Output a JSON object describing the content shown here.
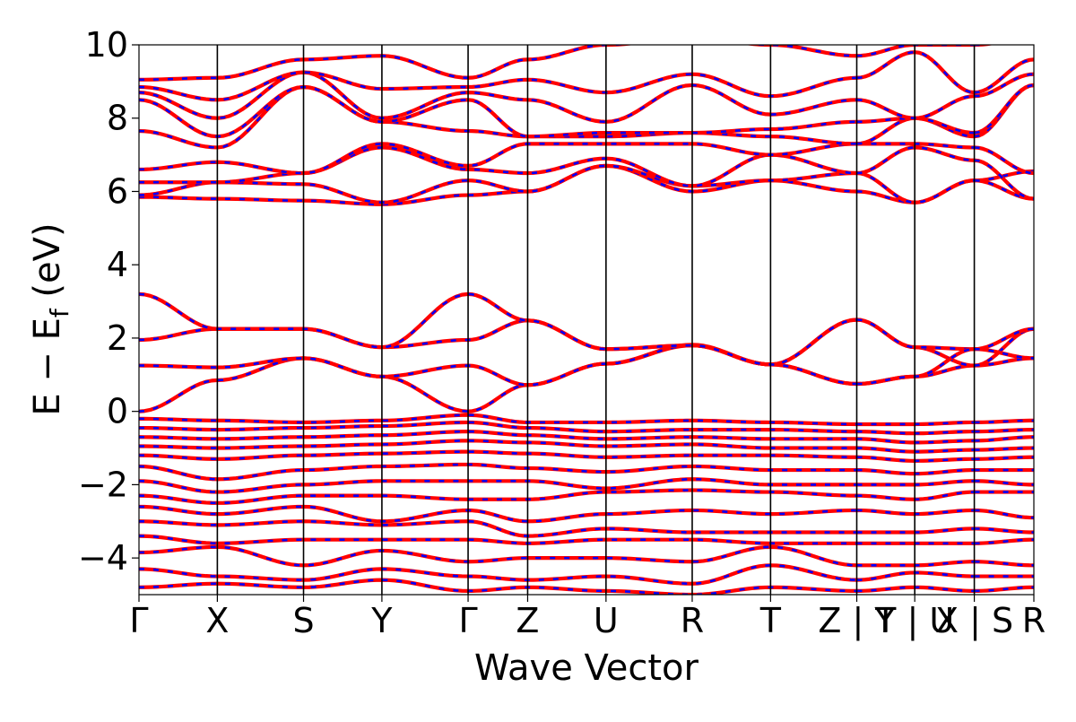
{
  "chart_data": {
    "type": "line",
    "title": "",
    "xlabel": "Wave Vector",
    "ylabel": "E − Ef (eV)",
    "ylabel_parts": {
      "main": "E − E",
      "sub": "f",
      "unit": " (eV)"
    },
    "ylim": [
      -5,
      10
    ],
    "yticks": [
      -4,
      -2,
      0,
      2,
      4,
      6,
      8,
      10
    ],
    "ytick_labels": [
      "−4",
      "−2",
      "0",
      "2",
      "4",
      "6",
      "8",
      "10"
    ],
    "x_segments": [
      {
        "from": "Γ",
        "to": "X",
        "length": 0.5
      },
      {
        "from": "X",
        "to": "S",
        "length": 0.55
      },
      {
        "from": "S",
        "to": "Y",
        "length": 0.5
      },
      {
        "from": "Y",
        "to": "Γ",
        "length": 0.55
      },
      {
        "from": "Γ",
        "to": "Z",
        "length": 0.38
      },
      {
        "from": "Z",
        "to": "U",
        "length": 0.5
      },
      {
        "from": "U",
        "to": "R",
        "length": 0.55
      },
      {
        "from": "R",
        "to": "T",
        "length": 0.5
      },
      {
        "from": "T",
        "to": "Z",
        "length": 0.55
      },
      {
        "from": "Y",
        "to": "T",
        "length": 0.37
      },
      {
        "from": "U",
        "to": "X",
        "length": 0.38
      },
      {
        "from": "S",
        "to": "R",
        "length": 0.38
      }
    ],
    "x_tick_labels": [
      "Γ",
      "X",
      "S",
      "Y",
      "Γ",
      "Z",
      "U",
      "R",
      "T",
      "Z | Y",
      "T | U",
      "X | S",
      "R"
    ],
    "grid": false,
    "legend": "none",
    "series": [
      {
        "color": "#ff0000",
        "dash": "solid"
      },
      {
        "color": "#0000ff",
        "dash": "dashed"
      }
    ],
    "bands": [
      {
        "values": [
          0.0,
          0.85,
          1.45,
          0.95,
          0.0,
          0.72,
          1.3,
          1.82,
          1.28,
          0.75,
          0.95,
          1.25,
          1.45,
          1.8
        ],
        "breaks": [
          9,
          11
        ]
      },
      {
        "values": [
          1.25,
          1.2,
          1.45,
          0.95,
          1.25,
          0.72,
          1.3,
          1.8,
          1.28,
          2.5,
          1.75,
          1.25,
          2.25,
          1.8
        ],
        "breaks": [
          9,
          11
        ]
      },
      {
        "values": [
          1.95,
          2.25,
          2.25,
          1.75,
          1.95,
          2.48,
          1.7,
          1.8,
          1.28,
          2.5,
          1.75,
          1.7,
          2.25,
          1.8
        ],
        "breaks": [
          9,
          11
        ]
      },
      {
        "values": [
          3.2,
          2.25,
          2.25,
          1.75,
          3.2,
          2.48,
          1.7,
          1.8,
          1.28,
          0.75,
          0.95,
          1.7,
          1.45,
          1.8
        ],
        "breaks": [
          9,
          11
        ]
      },
      {
        "values": [
          5.85,
          5.8,
          5.75,
          5.65,
          5.9,
          6.0,
          6.7,
          6.0,
          6.3,
          6.0,
          5.7,
          6.3,
          6.55,
          6.15
        ],
        "breaks": [
          9,
          11
        ]
      },
      {
        "values": [
          5.9,
          6.25,
          6.2,
          5.7,
          6.3,
          6.0,
          6.7,
          6.15,
          6.3,
          6.5,
          5.7,
          6.3,
          5.8,
          6.0
        ],
        "breaks": [
          9,
          11
        ]
      },
      {
        "values": [
          6.25,
          6.25,
          6.5,
          7.2,
          6.6,
          6.5,
          6.9,
          6.15,
          7.0,
          6.5,
          7.2,
          6.85,
          5.8,
          7.5
        ],
        "breaks": [
          9,
          11
        ]
      },
      {
        "values": [
          6.6,
          6.8,
          6.5,
          7.3,
          6.7,
          7.3,
          7.3,
          7.3,
          7.0,
          7.3,
          7.3,
          7.2,
          6.5,
          7.5
        ],
        "breaks": [
          9,
          11
        ]
      },
      {
        "values": [
          7.65,
          7.2,
          8.85,
          7.9,
          7.65,
          7.5,
          7.5,
          7.6,
          7.5,
          7.3,
          8.0,
          7.5,
          8.9,
          8.9
        ],
        "breaks": [
          9,
          11
        ]
      },
      {
        "values": [
          8.5,
          7.5,
          8.85,
          7.9,
          8.5,
          7.5,
          7.6,
          7.6,
          7.7,
          7.9,
          8.0,
          7.6,
          8.9,
          8.9
        ],
        "breaks": [
          9,
          11
        ]
      },
      {
        "values": [
          8.7,
          8.0,
          9.25,
          8.0,
          8.7,
          8.5,
          7.9,
          8.9,
          8.1,
          8.5,
          8.0,
          8.6,
          9.2,
          9.2
        ],
        "breaks": [
          9,
          11
        ]
      },
      {
        "values": [
          8.85,
          8.5,
          9.25,
          8.8,
          8.85,
          9.05,
          8.7,
          9.2,
          8.6,
          9.1,
          9.8,
          8.7,
          9.6,
          9.6
        ],
        "breaks": [
          9,
          11
        ]
      },
      {
        "values": [
          9.05,
          9.1,
          9.6,
          9.7,
          9.1,
          9.6,
          10.0,
          10.2,
          10.0,
          9.7,
          10.0,
          10.0,
          10.2,
          10.2
        ],
        "breaks": [
          9,
          11
        ]
      },
      {
        "values": [
          -0.2,
          -0.25,
          -0.3,
          -0.25,
          -0.1,
          -0.3,
          -0.3,
          -0.25,
          -0.3,
          -0.35,
          -0.35,
          -0.3,
          -0.25,
          -0.25
        ],
        "breaks": [
          9,
          11
        ]
      },
      {
        "values": [
          -0.45,
          -0.5,
          -0.45,
          -0.4,
          -0.3,
          -0.45,
          -0.55,
          -0.5,
          -0.5,
          -0.55,
          -0.6,
          -0.55,
          -0.5,
          -0.55
        ],
        "breaks": [
          9,
          11
        ]
      },
      {
        "values": [
          -0.7,
          -0.75,
          -0.7,
          -0.65,
          -0.55,
          -0.65,
          -0.75,
          -0.7,
          -0.75,
          -0.75,
          -0.85,
          -0.8,
          -0.7,
          -0.75
        ],
        "breaks": [
          9,
          11
        ]
      },
      {
        "values": [
          -0.95,
          -1.0,
          -0.95,
          -0.9,
          -0.8,
          -0.85,
          -0.95,
          -0.9,
          -1.0,
          -1.0,
          -1.1,
          -1.05,
          -1.0,
          -1.05
        ],
        "breaks": [
          9,
          11
        ]
      },
      {
        "values": [
          -1.2,
          -1.3,
          -1.2,
          -1.15,
          -1.1,
          -1.15,
          -1.25,
          -1.2,
          -1.2,
          -1.25,
          -1.35,
          -1.3,
          -1.25,
          -1.3
        ],
        "breaks": [
          9,
          11
        ]
      },
      {
        "values": [
          -1.5,
          -1.85,
          -1.6,
          -1.5,
          -1.45,
          -1.55,
          -1.65,
          -1.5,
          -1.6,
          -1.6,
          -1.7,
          -1.6,
          -1.6,
          -1.6
        ],
        "breaks": [
          9,
          11
        ]
      },
      {
        "values": [
          -1.9,
          -2.2,
          -2.0,
          -1.9,
          -1.9,
          -1.9,
          -2.1,
          -1.85,
          -2.0,
          -2.0,
          -2.0,
          -1.9,
          -2.0,
          -2.0
        ],
        "breaks": [
          9,
          11
        ]
      },
      {
        "values": [
          -2.3,
          -2.5,
          -2.3,
          -2.3,
          -2.4,
          -2.4,
          -2.2,
          -2.15,
          -2.2,
          -2.3,
          -2.4,
          -2.2,
          -2.2,
          -2.2
        ],
        "breaks": [
          9,
          11
        ]
      },
      {
        "values": [
          -2.6,
          -2.8,
          -2.6,
          -3.0,
          -2.7,
          -3.0,
          -2.8,
          -2.7,
          -2.8,
          -2.7,
          -2.8,
          -2.7,
          -2.9,
          -3.0
        ],
        "breaks": [
          9,
          11
        ]
      },
      {
        "values": [
          -3.0,
          -3.1,
          -3.0,
          -3.1,
          -3.0,
          -3.4,
          -3.2,
          -3.3,
          -3.3,
          -3.3,
          -3.3,
          -3.2,
          -3.3,
          -3.3
        ],
        "breaks": [
          9,
          11
        ]
      },
      {
        "values": [
          -3.4,
          -3.6,
          -3.5,
          -3.5,
          -3.5,
          -3.6,
          -3.5,
          -3.5,
          -3.6,
          -3.6,
          -3.6,
          -3.6,
          -3.5,
          -3.6
        ],
        "breaks": [
          9,
          11
        ]
      },
      {
        "values": [
          -3.85,
          -3.7,
          -4.2,
          -3.8,
          -4.1,
          -4.0,
          -4.0,
          -4.1,
          -3.7,
          -4.2,
          -4.2,
          -4.1,
          -4.2,
          -4.2
        ],
        "breaks": [
          9,
          11
        ]
      },
      {
        "values": [
          -4.3,
          -4.5,
          -4.6,
          -4.3,
          -4.5,
          -4.6,
          -4.5,
          -4.7,
          -4.2,
          -4.6,
          -4.4,
          -4.5,
          -4.5,
          -4.6
        ],
        "breaks": [
          9,
          11
        ]
      },
      {
        "values": [
          -4.8,
          -4.7,
          -4.8,
          -4.6,
          -4.9,
          -4.8,
          -4.9,
          -5.0,
          -4.8,
          -4.9,
          -4.8,
          -4.9,
          -4.8,
          -4.8
        ],
        "breaks": [
          9,
          11
        ]
      }
    ]
  }
}
